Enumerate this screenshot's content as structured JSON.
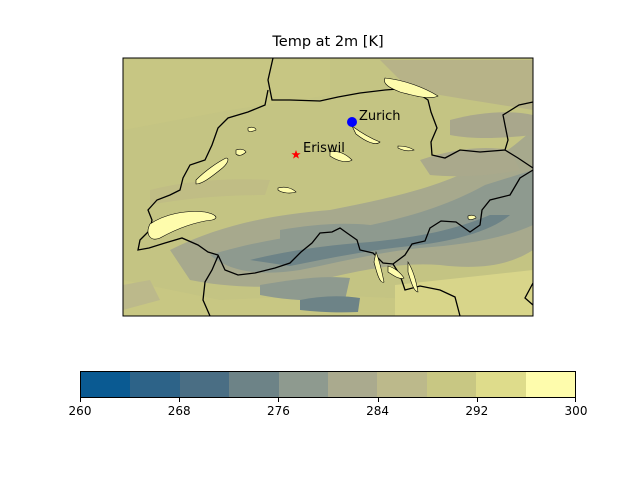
{
  "title": "Temp at 2m [K]",
  "map": {
    "variable": "2m temperature",
    "region": "Switzerland",
    "markers": [
      {
        "name": "Zurich",
        "symbol": "circle",
        "color": "#0000ff"
      },
      {
        "name": "Eriswil",
        "symbol": "star",
        "color": "#ff0000"
      }
    ]
  },
  "colorbar": {
    "ticks": [
      "260",
      "268",
      "276",
      "284",
      "292",
      "300"
    ],
    "colors": [
      "#0a5a92",
      "#2d6388",
      "#4a6e84",
      "#6d8387",
      "#8e9a8f",
      "#aaaa8e",
      "#bcb98b",
      "#c8c783",
      "#dedc8b",
      "#fefcac"
    ]
  }
}
